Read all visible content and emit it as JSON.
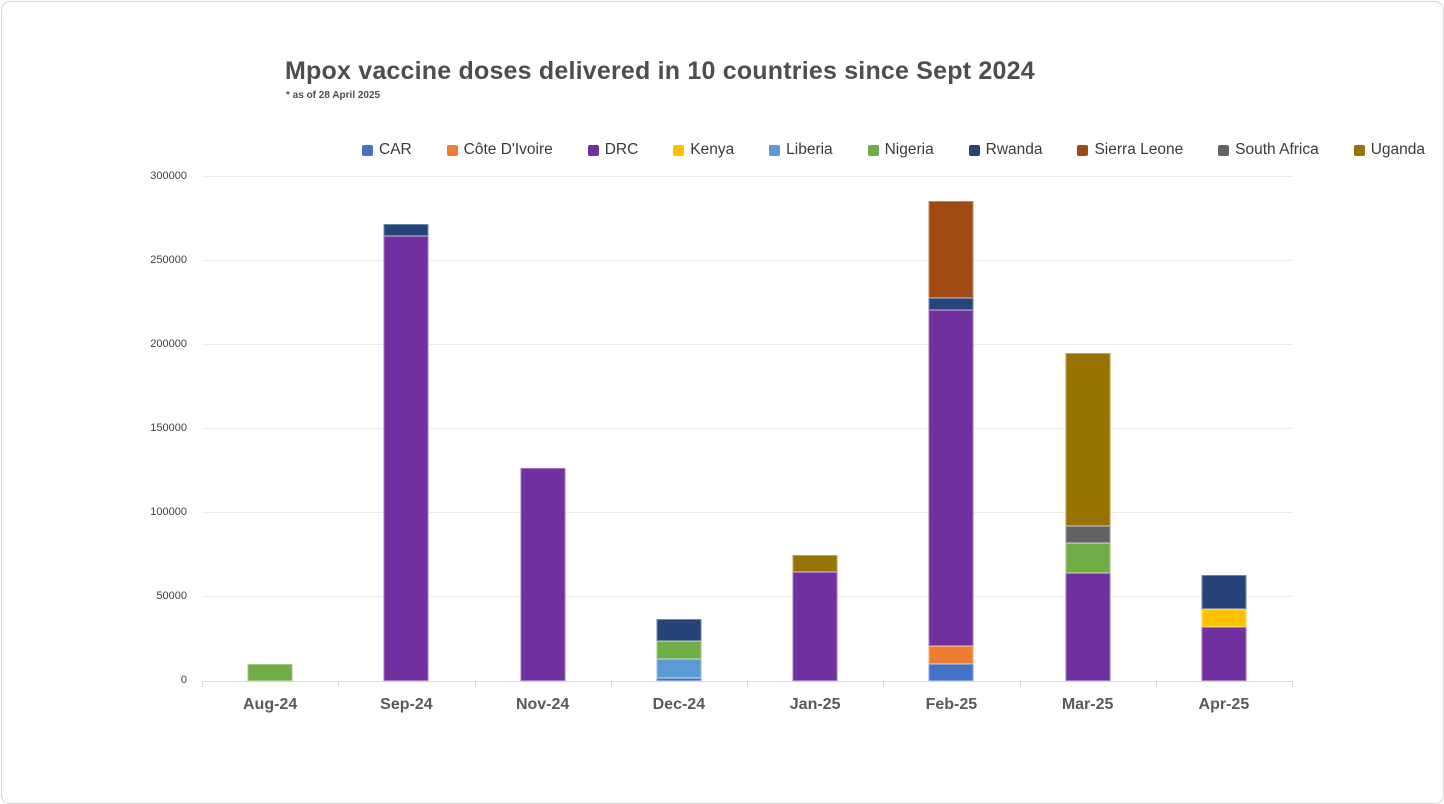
{
  "chart_data": {
    "type": "bar",
    "stacked": true,
    "title": "Mpox vaccine doses delivered in 10 countries since Sept 2024",
    "subtitle": "* as of 28 April 2025",
    "categories": [
      "Aug-24",
      "Sep-24",
      "Nov-24",
      "Dec-24",
      "Jan-25",
      "Feb-25",
      "Mar-25",
      "Apr-25"
    ],
    "series": [
      {
        "name": "CAR",
        "color": "#4472C4",
        "values": [
          0,
          0,
          0,
          2000,
          0,
          10000,
          0,
          0
        ]
      },
      {
        "name": "Côte D'Ivoire",
        "color": "#ED7D31",
        "values": [
          0,
          0,
          0,
          0,
          0,
          11000,
          0,
          0
        ]
      },
      {
        "name": "DRC",
        "color": "#7030A0",
        "values": [
          0,
          265000,
          127000,
          0,
          65000,
          200000,
          64000,
          32000
        ]
      },
      {
        "name": "Kenya",
        "color": "#FFC000",
        "values": [
          0,
          0,
          0,
          0,
          0,
          0,
          0,
          11000
        ]
      },
      {
        "name": "Liberia",
        "color": "#5B9BD5",
        "values": [
          0,
          0,
          0,
          11000,
          0,
          0,
          0,
          0
        ]
      },
      {
        "name": "Nigeria",
        "color": "#70AD47",
        "values": [
          10000,
          0,
          0,
          11000,
          0,
          0,
          18000,
          0
        ]
      },
      {
        "name": "Rwanda",
        "color": "#264478",
        "values": [
          0,
          7000,
          0,
          13000,
          0,
          7000,
          0,
          20000
        ]
      },
      {
        "name": "Sierra Leone",
        "color": "#A04A12",
        "values": [
          0,
          0,
          0,
          0,
          0,
          58000,
          0,
          0
        ]
      },
      {
        "name": "South Africa",
        "color": "#636363",
        "values": [
          0,
          0,
          0,
          0,
          0,
          0,
          10000,
          0
        ]
      },
      {
        "name": "Uganda",
        "color": "#997300",
        "values": [
          0,
          0,
          0,
          0,
          10000,
          0,
          103000,
          0
        ]
      }
    ],
    "xlabel": "",
    "ylabel": "",
    "ylim": [
      0,
      300000
    ],
    "yticks": [
      0,
      50000,
      100000,
      150000,
      200000,
      250000,
      300000
    ],
    "grid": "horizontal",
    "legend_position": "top"
  }
}
